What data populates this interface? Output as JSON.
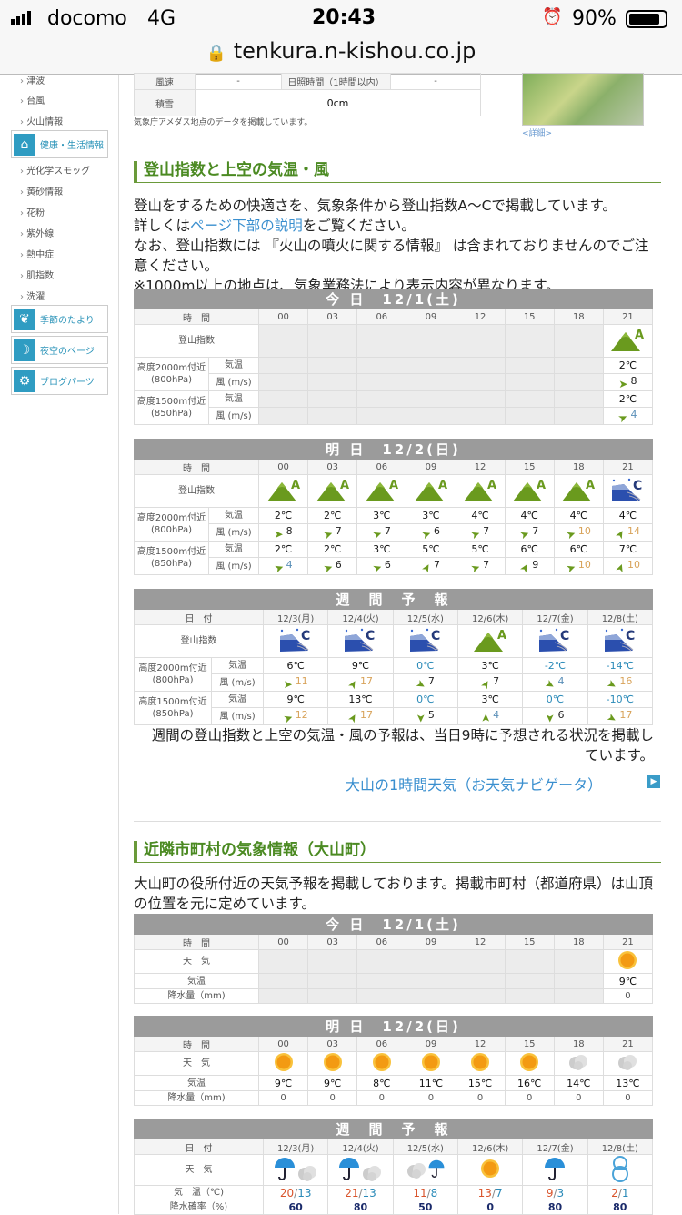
{
  "status": {
    "carrier": "docomo",
    "network": "4G",
    "time": "20:43",
    "battery": "90%"
  },
  "url": "tenkura.n-kishou.co.jp",
  "sidebar": {
    "items": [
      "津波",
      "台風",
      "火山情報"
    ],
    "cat": "健康・生活情報",
    "items2": [
      "光化学スモッグ",
      "黄砂情報",
      "花粉",
      "紫外線",
      "熱中症",
      "肌指数",
      "洗濯"
    ],
    "boxes": [
      "季節のたより",
      "夜空のページ",
      "ブログパーツ"
    ]
  },
  "amedas": {
    "wind_label": "風速",
    "wind": "-",
    "sun_label": "日照時間（1時間以内）",
    "sun": "-",
    "snow_label": "積雪",
    "snow": "0cm",
    "caption": "気象庁アメダス地点のデータを掲載しています。",
    "detail_link": "<詳細>"
  },
  "mountain": {
    "heading": "登山指数と上空の気温・風",
    "para": [
      "登山をするための快適さを、気象条件から登山指数A〜Cで掲載しています。",
      "詳しくは",
      "ページ下部の説明",
      "をご覧ください。",
      "なお、登山指数には 『火山の噴火に関する情報』 は含まれておりませんのでご注意ください。",
      "※1000m以上の地点は、気象業務法により表示内容が異なります。"
    ],
    "labels": {
      "time": "時　間",
      "date": "日　付",
      "index": "登山指数",
      "alt2000": "高度2000m付近",
      "hpa800": "(800hPa)",
      "alt1500": "高度1500m付近",
      "hpa850": "(850hPa)",
      "temp": "気温",
      "wind": "風 (m/s)"
    },
    "tables": [
      {
        "title": "今 日　12/1(土)",
        "times": [
          "00",
          "03",
          "06",
          "09",
          "12",
          "15",
          "18",
          "21"
        ],
        "index": [
          null,
          null,
          null,
          null,
          null,
          null,
          null,
          "A"
        ],
        "t2000": [
          null,
          null,
          null,
          null,
          null,
          null,
          null,
          "2℃"
        ],
        "w2000": [
          null,
          null,
          null,
          null,
          null,
          null,
          null,
          {
            "speed": "8",
            "dir": 0
          }
        ],
        "t1500": [
          null,
          null,
          null,
          null,
          null,
          null,
          null,
          "2℃"
        ],
        "w1500": [
          null,
          null,
          null,
          null,
          null,
          null,
          null,
          {
            "speed": "4",
            "dir": -25
          }
        ]
      },
      {
        "title": "明 日　12/2(日)",
        "times": [
          "00",
          "03",
          "06",
          "09",
          "12",
          "15",
          "18",
          "21"
        ],
        "index": [
          "A",
          "A",
          "A",
          "A",
          "A",
          "A",
          "A",
          "C"
        ],
        "t2000": [
          "2℃",
          "2℃",
          "3℃",
          "3℃",
          "4℃",
          "4℃",
          "4℃",
          "4℃"
        ],
        "w2000": [
          {
            "speed": "8",
            "dir": 0
          },
          {
            "speed": "7",
            "dir": -20
          },
          {
            "speed": "7",
            "dir": -20
          },
          {
            "speed": "6",
            "dir": -20
          },
          {
            "speed": "7",
            "dir": -20
          },
          {
            "speed": "7",
            "dir": -20
          },
          {
            "speed": "10",
            "dir": -20
          },
          {
            "speed": "14",
            "dir": -60
          }
        ],
        "t1500": [
          "2℃",
          "2℃",
          "3℃",
          "5℃",
          "5℃",
          "6℃",
          "6℃",
          "7℃"
        ],
        "w1500": [
          {
            "speed": "4",
            "dir": -20
          },
          {
            "speed": "6",
            "dir": -20
          },
          {
            "speed": "6",
            "dir": -20
          },
          {
            "speed": "7",
            "dir": -60
          },
          {
            "speed": "7",
            "dir": -20
          },
          {
            "speed": "9",
            "dir": -60
          },
          {
            "speed": "10",
            "dir": -20
          },
          {
            "speed": "10",
            "dir": -70
          }
        ]
      }
    ],
    "weekly": {
      "title": "週　間　予　報",
      "dates": [
        "12/3(月)",
        "12/4(火)",
        "12/5(水)",
        "12/6(木)",
        "12/7(金)",
        "12/8(土)"
      ],
      "index": [
        "C",
        "C",
        "C",
        "A",
        "C",
        "C"
      ],
      "t2000": [
        "6℃",
        "9℃",
        "0℃",
        "3℃",
        "-2℃",
        "-14℃"
      ],
      "w2000": [
        {
          "speed": "11",
          "dir": 0
        },
        {
          "speed": "17",
          "dir": -60
        },
        {
          "speed": "7",
          "dir": 30
        },
        {
          "speed": "7",
          "dir": -60
        },
        {
          "speed": "4",
          "dir": 30
        },
        {
          "speed": "16",
          "dir": 30
        }
      ],
      "t1500": [
        "9℃",
        "13℃",
        "0℃",
        "3℃",
        "0℃",
        "-10℃"
      ],
      "w1500": [
        {
          "speed": "12",
          "dir": -20
        },
        {
          "speed": "17",
          "dir": -60
        },
        {
          "speed": "5",
          "dir": 90
        },
        {
          "speed": "4",
          "dir": -90
        },
        {
          "speed": "6",
          "dir": 90
        },
        {
          "speed": "17",
          "dir": 30
        }
      ]
    },
    "note": "週間の登山指数と上空の気温・風の予報は、当日9時に予想される状況を掲載しています。",
    "link": "大山の1時間天気（お天気ナビゲータ）"
  },
  "town": {
    "heading": "近隣市町村の気象情報（大山町）",
    "para": "大山町の役所付近の天気予報を掲載しております。掲載市町村（都道府県）は山頂の位置を元に定めています。",
    "labels": {
      "time": "時　間",
      "weather": "天　気",
      "temp": "気温",
      "precip": "降水量（mm)",
      "date": "日　付",
      "wtemp": "気　温（℃)",
      "pop": "降水確率（%)"
    },
    "tables": [
      {
        "title": "今 日　12/1(土)",
        "times": [
          "00",
          "03",
          "06",
          "09",
          "12",
          "15",
          "18",
          "21"
        ],
        "weather": [
          null,
          null,
          null,
          null,
          null,
          null,
          null,
          "sun"
        ],
        "temp": [
          null,
          null,
          null,
          null,
          null,
          null,
          null,
          "9℃"
        ],
        "precip": [
          null,
          null,
          null,
          null,
          null,
          null,
          null,
          "0"
        ]
      },
      {
        "title": "明 日　12/2(日)",
        "times": [
          "00",
          "03",
          "06",
          "09",
          "12",
          "15",
          "18",
          "21"
        ],
        "weather": [
          "sun",
          "sun",
          "sun",
          "sun",
          "sun",
          "sun",
          "cloud",
          "cloud"
        ],
        "temp": [
          "9℃",
          "9℃",
          "8℃",
          "11℃",
          "15℃",
          "16℃",
          "14℃",
          "13℃"
        ],
        "precip": [
          "0",
          "0",
          "0",
          "0",
          "0",
          "0",
          "0",
          "0"
        ]
      }
    ],
    "weekly": {
      "title": "週　間　予　報",
      "dates": [
        "12/3(月)",
        "12/4(火)",
        "12/5(水)",
        "12/6(木)",
        "12/7(金)",
        "12/8(土)"
      ],
      "weather": [
        "umbrella-cloud",
        "umbrella-cloud",
        "cloud-umbrella",
        "sun",
        "umbrella",
        "snowman"
      ],
      "high": [
        "20",
        "21",
        "11",
        "13",
        "9",
        "2"
      ],
      "low": [
        "13",
        "13",
        "8",
        "7",
        "3",
        "1"
      ],
      "pop": [
        "60",
        "80",
        "50",
        "0",
        "80",
        "80"
      ]
    }
  },
  "colors": {
    "heading": "#4b8a22",
    "table_header": "#9b9b9b",
    "mountain_a": "#6a9a1e",
    "mountain_c": "#2b4fae",
    "cold": "#2a8ab8",
    "high": "#d9542b",
    "strong_wind": "#d8a35a"
  }
}
